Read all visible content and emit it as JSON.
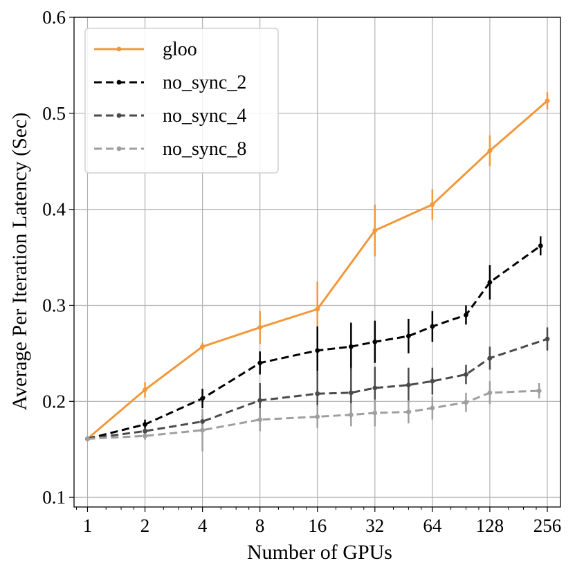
{
  "chart_data": {
    "type": "line",
    "xscale": "log2",
    "xlabel": "Number of GPUs",
    "ylabel": "Average Per Iteration Latency (Sec)",
    "xlim": [
      0.85,
      300
    ],
    "ylim": [
      0.09,
      0.6
    ],
    "x_ticks": [
      1,
      2,
      4,
      8,
      16,
      32,
      64,
      128,
      256
    ],
    "x_tick_labels": [
      "1",
      "2",
      "4",
      "8",
      "16",
      "32",
      "64",
      "128",
      "256"
    ],
    "y_ticks": [
      0.1,
      0.2,
      0.3,
      0.4,
      0.5,
      0.6
    ],
    "y_tick_labels": [
      "0.1",
      "0.2",
      "0.3",
      "0.4",
      "0.5",
      "0.6"
    ],
    "grid": true,
    "legend_position": "top-left",
    "series": [
      {
        "name": "gloo",
        "color": "#f0983a",
        "dash": "solid",
        "x": [
          1,
          2,
          4,
          8,
          16,
          32,
          64,
          128,
          256
        ],
        "y": [
          0.161,
          0.212,
          0.257,
          0.277,
          0.296,
          0.378,
          0.405,
          0.461,
          0.513
        ],
        "err": [
          0.002,
          0.008,
          0.004,
          0.017,
          0.029,
          0.027,
          0.016,
          0.016,
          0.009
        ]
      },
      {
        "name": "no_sync_2",
        "color": "#000000",
        "dash": "dashed",
        "x": [
          1,
          2,
          4,
          8,
          16,
          24,
          32,
          48,
          64,
          96,
          128,
          236
        ],
        "y": [
          0.161,
          0.176,
          0.203,
          0.24,
          0.253,
          0.257,
          0.262,
          0.268,
          0.278,
          0.29,
          0.324,
          0.362
        ],
        "err": [
          0.002,
          0.005,
          0.01,
          0.012,
          0.025,
          0.025,
          0.022,
          0.018,
          0.016,
          0.01,
          0.018,
          0.01
        ]
      },
      {
        "name": "no_sync_4",
        "color": "#4a4a4a",
        "dash": "dashed",
        "x": [
          1,
          2,
          4,
          8,
          16,
          24,
          32,
          48,
          64,
          96,
          128,
          256
        ],
        "y": [
          0.161,
          0.169,
          0.179,
          0.201,
          0.208,
          0.209,
          0.214,
          0.217,
          0.221,
          0.228,
          0.245,
          0.265
        ],
        "err": [
          0.002,
          0.004,
          0.006,
          0.018,
          0.024,
          0.026,
          0.022,
          0.018,
          0.014,
          0.01,
          0.012,
          0.012
        ]
      },
      {
        "name": "no_sync_8",
        "color": "#9e9e9e",
        "dash": "dashed",
        "x": [
          1,
          2,
          4,
          8,
          16,
          24,
          32,
          48,
          64,
          96,
          128,
          232
        ],
        "y": [
          0.161,
          0.164,
          0.17,
          0.181,
          0.184,
          0.186,
          0.188,
          0.189,
          0.193,
          0.199,
          0.209,
          0.211
        ],
        "err": [
          0.002,
          0.004,
          0.022,
          0.012,
          0.012,
          0.012,
          0.014,
          0.012,
          0.012,
          0.01,
          0.012,
          0.008
        ]
      }
    ]
  }
}
